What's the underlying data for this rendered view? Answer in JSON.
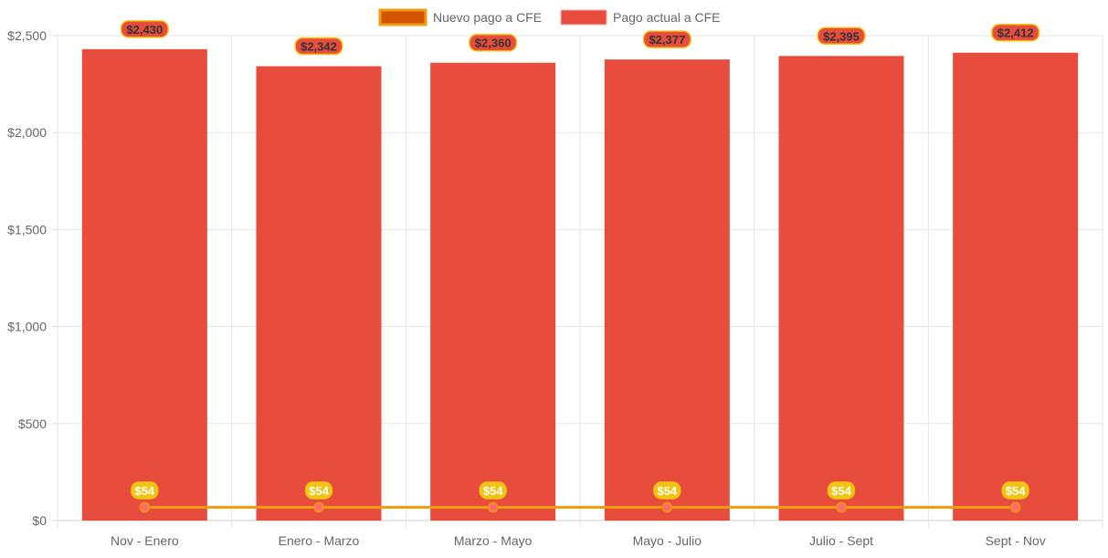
{
  "chart_data": {
    "type": "bar",
    "title": "",
    "xlabel": "",
    "ylabel": "",
    "categories": [
      "Nov - Enero",
      "Enero - Marzo",
      "Marzo - Mayo",
      "Mayo - Julio",
      "Julio - Sept",
      "Sept - Nov"
    ],
    "series": [
      {
        "name": "Nuevo pago a CFE",
        "type": "line",
        "values": [
          54,
          54,
          54,
          54,
          54,
          54
        ],
        "labels": [
          "$54",
          "$54",
          "$54",
          "$54",
          "$54",
          "$54"
        ],
        "color": "#f39c12",
        "point_color": "#ff6b6b"
      },
      {
        "name": "Pago actual a CFE",
        "type": "bar",
        "values": [
          2430,
          2342,
          2360,
          2377,
          2395,
          2412
        ],
        "labels": [
          "$2,430",
          "$2,342",
          "$2,360",
          "$2,377",
          "$2,395",
          "$2,412"
        ],
        "color": "#e74c3c"
      }
    ],
    "ylim": [
      0,
      2500
    ],
    "yticks": [
      0,
      500,
      1000,
      1500,
      2000,
      2500
    ],
    "ytick_labels": [
      "$0",
      "$500",
      "$1,000",
      "$1,500",
      "$2,000",
      "$2,500"
    ],
    "grid": true,
    "legend_position": "top"
  }
}
